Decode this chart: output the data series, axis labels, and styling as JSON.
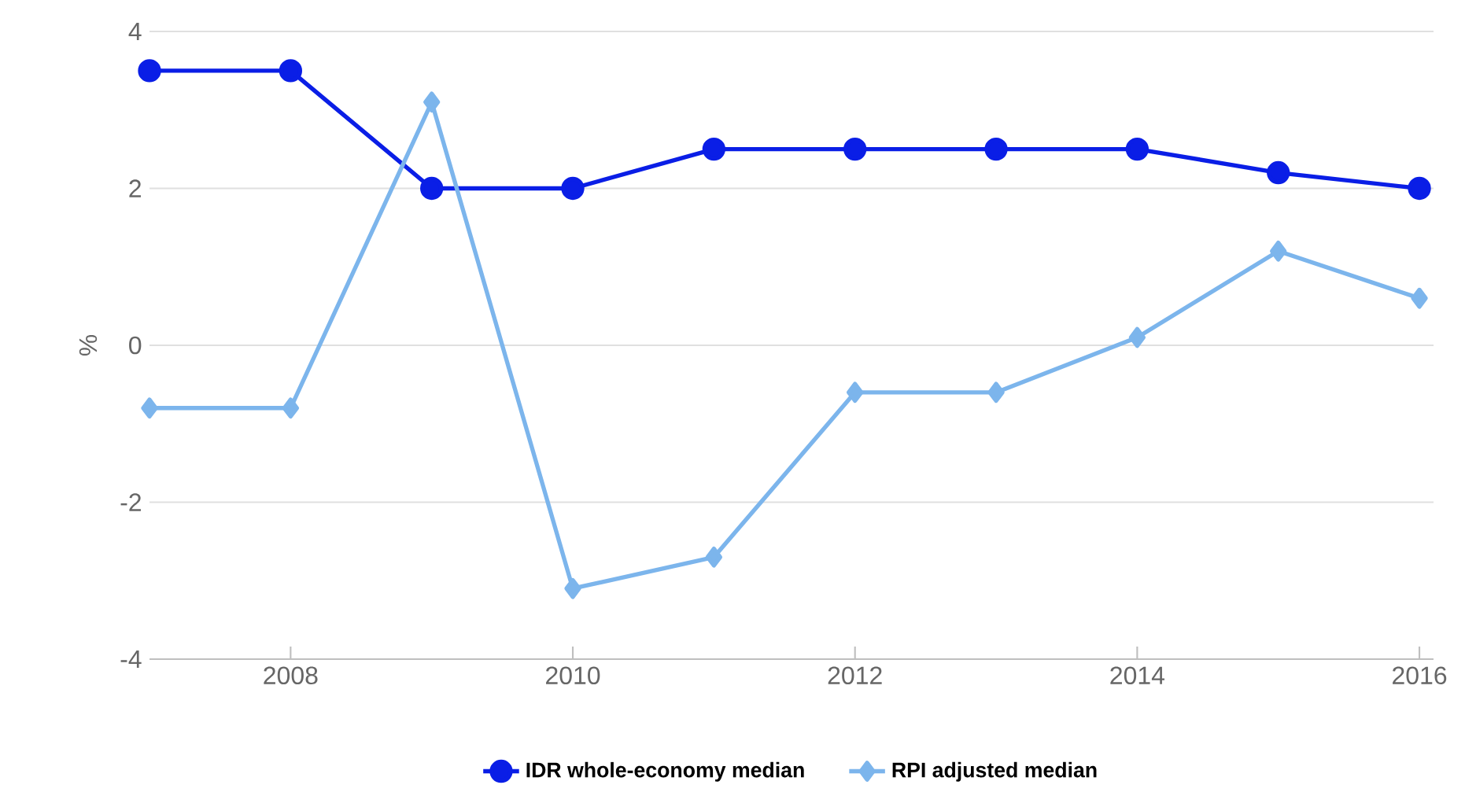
{
  "chart_data": {
    "type": "line",
    "ylabel": "%",
    "x": [
      2007,
      2008,
      2009,
      2010,
      2011,
      2012,
      2013,
      2014,
      2015,
      2016
    ],
    "series": [
      {
        "name": "IDR whole-economy median",
        "color": "#0a1ee6",
        "marker": "circle",
        "values": [
          3.5,
          3.5,
          2.0,
          2.0,
          2.5,
          2.5,
          2.5,
          2.5,
          2.2,
          2.0
        ]
      },
      {
        "name": "RPI adjusted median",
        "color": "#7cb5ec",
        "marker": "diamond",
        "values": [
          -0.8,
          -0.8,
          3.1,
          -3.1,
          -2.7,
          -0.6,
          -0.6,
          0.1,
          1.2,
          0.6
        ]
      }
    ],
    "xlim": [
      2007,
      2016.1
    ],
    "xticks": [
      2008,
      2010,
      2012,
      2014,
      2016
    ],
    "ylim": [
      -4,
      4
    ],
    "yticks": [
      -4,
      -2,
      0,
      2,
      4
    ],
    "grid": "y",
    "legend": "bottom"
  }
}
